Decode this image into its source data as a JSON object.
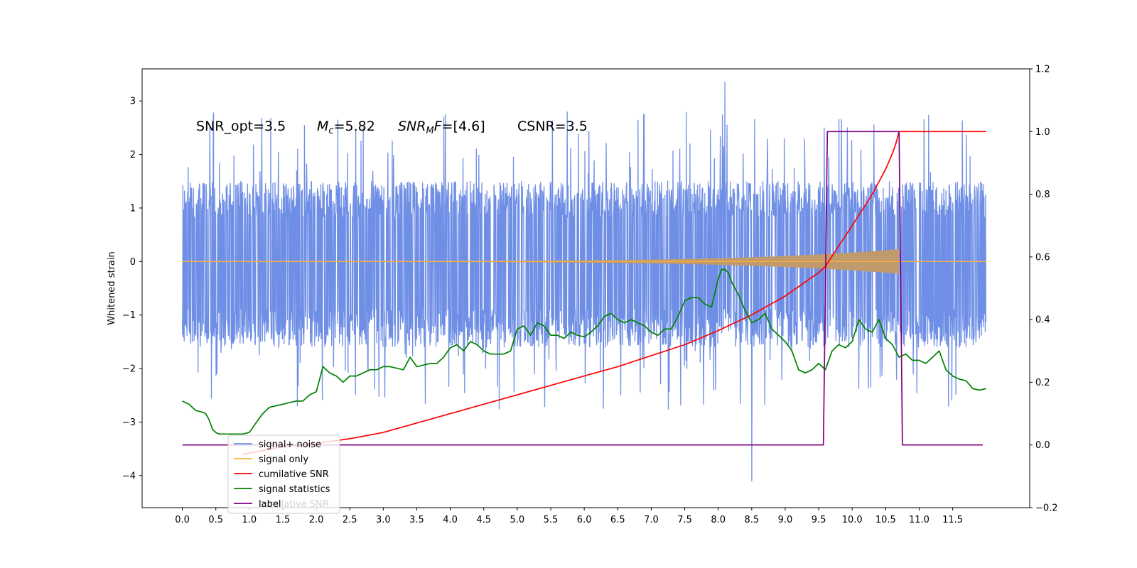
{
  "chart_data": {
    "type": "line",
    "ylabel": "Whitened strain",
    "left_ylim": [
      -4.6,
      3.6
    ],
    "right_ylim": [
      -0.2,
      1.2
    ],
    "xlim": [
      -0.6,
      12.65
    ],
    "xticks": [
      "0.0",
      "0.5",
      "1.0",
      "1.5",
      "2.0",
      "2.5",
      "3.0",
      "3.5",
      "4.0",
      "4.5",
      "5.0",
      "5.5",
      "6.0",
      "6.5",
      "7.0",
      "7.5",
      "8.0",
      "8.5",
      "9.0",
      "9.5",
      "10.0",
      "10.5",
      "11.0",
      "11.5"
    ],
    "left_yticks": [
      "3",
      "2",
      "1",
      "0",
      "−1",
      "−2",
      "−3",
      "−4"
    ],
    "right_yticks": [
      "1.2",
      "1.0",
      "0.8",
      "0.6",
      "0.4",
      "0.2",
      "0.0",
      "−0.2"
    ],
    "annotation": {
      "snr_opt": "SNR_opt=3.5",
      "mc_sym": "M",
      "mc_sub": "c",
      "mc_val": "=5.82",
      "snrmf_sym": "SNR",
      "snrmf_sub": "M",
      "snrmf_f": "F",
      "snrmf_val": "=[4.6]",
      "csnr": "CSNR=3.5"
    },
    "colors": {
      "noise": "#6f8fe6",
      "signal": "#f5b041",
      "signal_fill": "#c19a6b",
      "cumulative": "#ff0000",
      "statistics": "#008000",
      "label": "#800080"
    },
    "series": [
      {
        "name": "signal+ noise",
        "kind": "noise",
        "x_range": [
          0.0,
          12.0
        ],
        "envelope": [
          -1.6,
          1.5
        ],
        "spike_max": 3.35,
        "spike_min": -4.1
      },
      {
        "name": "signal only",
        "kind": "chirp",
        "x_range": [
          0.0,
          12.0
        ],
        "chirp_end": 10.7,
        "amplitude_end": 0.22
      },
      {
        "name": "cumilative SNR",
        "axis": "right",
        "x": [
          0.9,
          1.5,
          2.0,
          2.5,
          3.0,
          3.5,
          4.0,
          4.5,
          5.0,
          5.5,
          6.0,
          6.5,
          7.0,
          7.5,
          8.0,
          8.5,
          9.0,
          9.5,
          9.6,
          10.0,
          10.3,
          10.5,
          10.6,
          10.65,
          10.7,
          10.75,
          11.0,
          11.5,
          12.0
        ],
        "values": [
          -0.03,
          -0.005,
          0.005,
          0.02,
          0.04,
          0.07,
          0.1,
          0.13,
          0.16,
          0.19,
          0.22,
          0.25,
          0.285,
          0.32,
          0.365,
          0.415,
          0.475,
          0.55,
          0.57,
          0.7,
          0.8,
          0.88,
          0.93,
          0.96,
          1.0,
          1.0,
          1.0,
          1.0,
          1.0
        ]
      },
      {
        "name": "signal statistics",
        "axis": "right",
        "x": [
          0.0,
          0.1,
          0.2,
          0.3,
          0.35,
          0.4,
          0.45,
          0.5,
          0.55,
          0.6,
          0.65,
          0.7,
          0.8,
          0.9,
          1.0,
          1.1,
          1.2,
          1.3,
          1.4,
          1.5,
          1.6,
          1.7,
          1.8,
          1.9,
          2.0,
          2.1,
          2.2,
          2.3,
          2.4,
          2.5,
          2.6,
          2.7,
          2.8,
          2.9,
          3.0,
          3.1,
          3.2,
          3.3,
          3.4,
          3.5,
          3.6,
          3.7,
          3.8,
          3.9,
          4.0,
          4.1,
          4.2,
          4.3,
          4.4,
          4.5,
          4.6,
          4.7,
          4.8,
          4.9,
          5.0,
          5.1,
          5.2,
          5.3,
          5.4,
          5.5,
          5.6,
          5.7,
          5.8,
          5.9,
          6.0,
          6.1,
          6.2,
          6.3,
          6.4,
          6.5,
          6.6,
          6.7,
          6.8,
          6.9,
          7.0,
          7.1,
          7.2,
          7.3,
          7.4,
          7.5,
          7.6,
          7.7,
          7.8,
          7.9,
          8.0,
          8.05,
          8.1,
          8.15,
          8.2,
          8.3,
          8.4,
          8.5,
          8.6,
          8.7,
          8.8,
          8.9,
          9.0,
          9.1,
          9.2,
          9.3,
          9.4,
          9.5,
          9.6,
          9.7,
          9.8,
          9.9,
          10.0,
          10.1,
          10.2,
          10.3,
          10.4,
          10.5,
          10.6,
          10.7,
          10.8,
          10.9,
          11.0,
          11.1,
          11.2,
          11.3,
          11.4,
          11.5,
          11.6,
          11.7,
          11.8,
          11.9,
          12.0
        ],
        "values": [
          0.14,
          0.13,
          0.11,
          0.105,
          0.1,
          0.08,
          0.05,
          0.04,
          0.035,
          0.035,
          0.035,
          0.035,
          0.035,
          0.035,
          0.04,
          0.07,
          0.1,
          0.12,
          0.125,
          0.13,
          0.135,
          0.14,
          0.14,
          0.16,
          0.17,
          0.25,
          0.23,
          0.22,
          0.2,
          0.22,
          0.22,
          0.23,
          0.24,
          0.24,
          0.25,
          0.25,
          0.245,
          0.24,
          0.28,
          0.25,
          0.255,
          0.26,
          0.26,
          0.28,
          0.31,
          0.32,
          0.3,
          0.33,
          0.32,
          0.3,
          0.29,
          0.29,
          0.29,
          0.3,
          0.37,
          0.38,
          0.35,
          0.39,
          0.38,
          0.35,
          0.35,
          0.34,
          0.36,
          0.35,
          0.345,
          0.36,
          0.38,
          0.41,
          0.42,
          0.4,
          0.39,
          0.4,
          0.39,
          0.38,
          0.36,
          0.35,
          0.37,
          0.37,
          0.41,
          0.46,
          0.47,
          0.47,
          0.45,
          0.44,
          0.53,
          0.56,
          0.56,
          0.55,
          0.52,
          0.48,
          0.43,
          0.39,
          0.4,
          0.42,
          0.37,
          0.35,
          0.33,
          0.3,
          0.24,
          0.23,
          0.24,
          0.26,
          0.24,
          0.3,
          0.32,
          0.31,
          0.33,
          0.4,
          0.37,
          0.36,
          0.4,
          0.34,
          0.32,
          0.28,
          0.29,
          0.27,
          0.27,
          0.26,
          0.28,
          0.3,
          0.24,
          0.22,
          0.21,
          0.205,
          0.18,
          0.175,
          0.18
        ]
      },
      {
        "name": "label",
        "axis": "right",
        "x": [
          0.0,
          9.57,
          9.63,
          10.7,
          10.75,
          11.95
        ],
        "values": [
          0.0,
          0.0,
          1.0,
          1.0,
          0.0,
          0.0
        ]
      }
    ],
    "legend": {
      "location": "lower-left",
      "entries": [
        "signal+ noise",
        "signal only",
        "cumilative SNR",
        "signal statistics",
        "label"
      ],
      "overlapped_text": "cumilative SNR"
    }
  }
}
